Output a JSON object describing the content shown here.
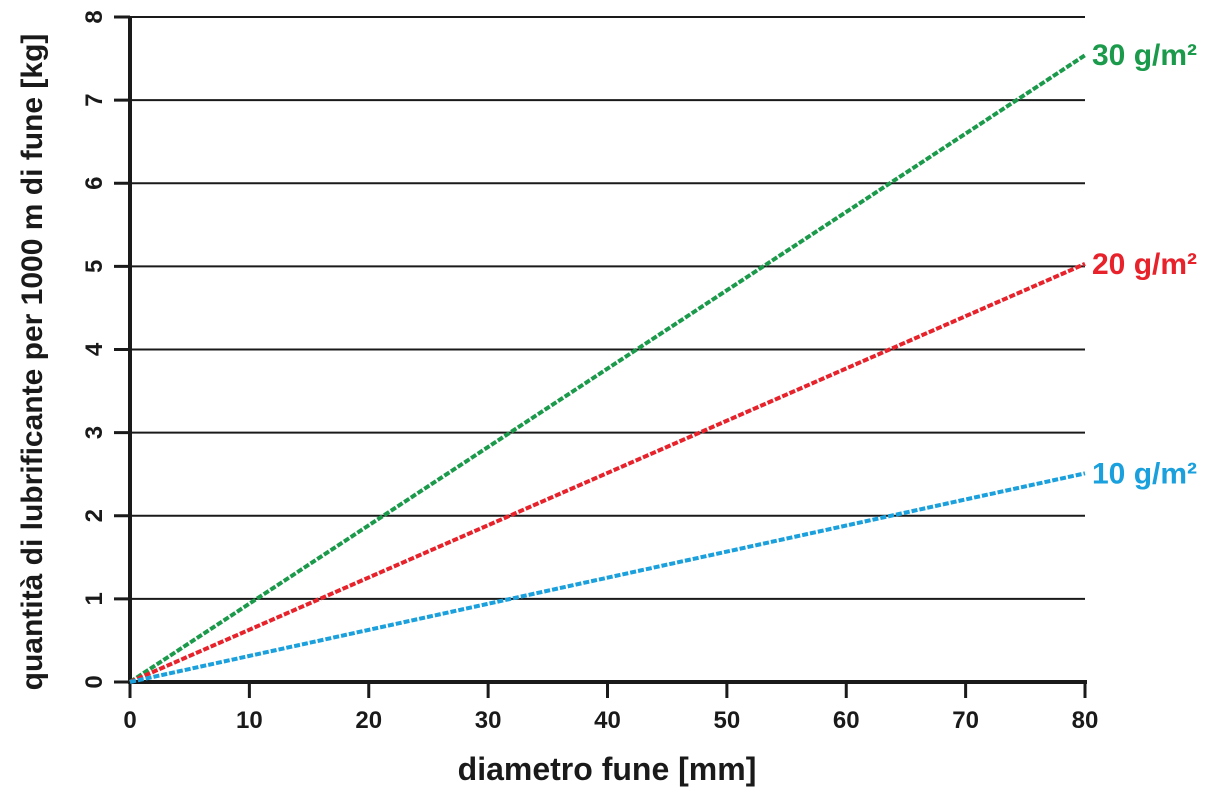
{
  "chart_data": {
    "type": "line",
    "title": "",
    "xlabel": "diametro fune [mm]",
    "ylabel": "quantità di lubrificante per 1000 m di fune [kg]",
    "xlim": [
      0,
      80
    ],
    "ylim": [
      0,
      8
    ],
    "x_ticks": [
      0,
      10,
      20,
      30,
      40,
      50,
      60,
      70,
      80
    ],
    "y_ticks": [
      0,
      1,
      2,
      3,
      4,
      5,
      6,
      7,
      8
    ],
    "grid": "horizontal",
    "legend": "inline labels at line ends",
    "series": [
      {
        "name": "30 g/m²",
        "color": "#1a9a4a",
        "x": [
          0,
          80
        ],
        "y": [
          0,
          7.54
        ]
      },
      {
        "name": "20 g/m²",
        "color": "#e8222b",
        "x": [
          0,
          80
        ],
        "y": [
          0,
          5.03
        ]
      },
      {
        "name": "10 g/m²",
        "color": "#1aa0dc",
        "x": [
          0,
          80
        ],
        "y": [
          0,
          2.51
        ]
      }
    ]
  }
}
